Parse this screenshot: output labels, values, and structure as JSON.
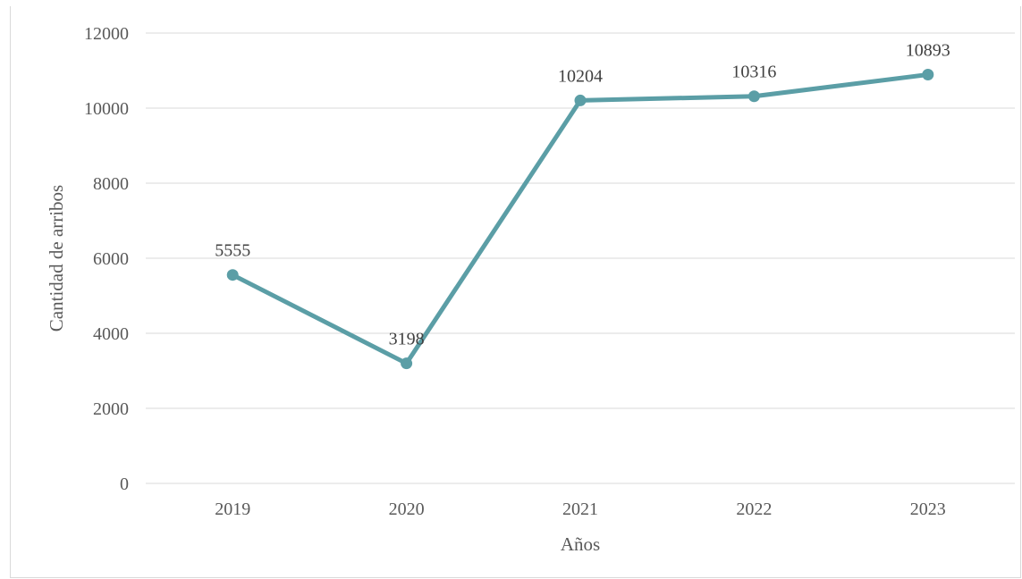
{
  "chart_data": {
    "type": "line",
    "title": "",
    "xlabel": "Años",
    "ylabel": "Cantidad de arribos",
    "categories": [
      "2019",
      "2020",
      "2021",
      "2022",
      "2023"
    ],
    "series": [
      {
        "values": [
          5555,
          3198,
          10204,
          10316,
          10893
        ],
        "color": "#5b9ea6"
      }
    ],
    "data_labels": [
      "5555",
      "3198",
      "10204",
      "10316",
      "10893"
    ],
    "ylim": [
      0,
      12000
    ],
    "yticks": [
      "0",
      "2000",
      "4000",
      "6000",
      "8000",
      "10000",
      "12000"
    ],
    "grid": true,
    "legend": "none",
    "colors": {
      "line": "#5b9ea6",
      "grid": "#d9d9d9",
      "text": "#595959"
    }
  }
}
